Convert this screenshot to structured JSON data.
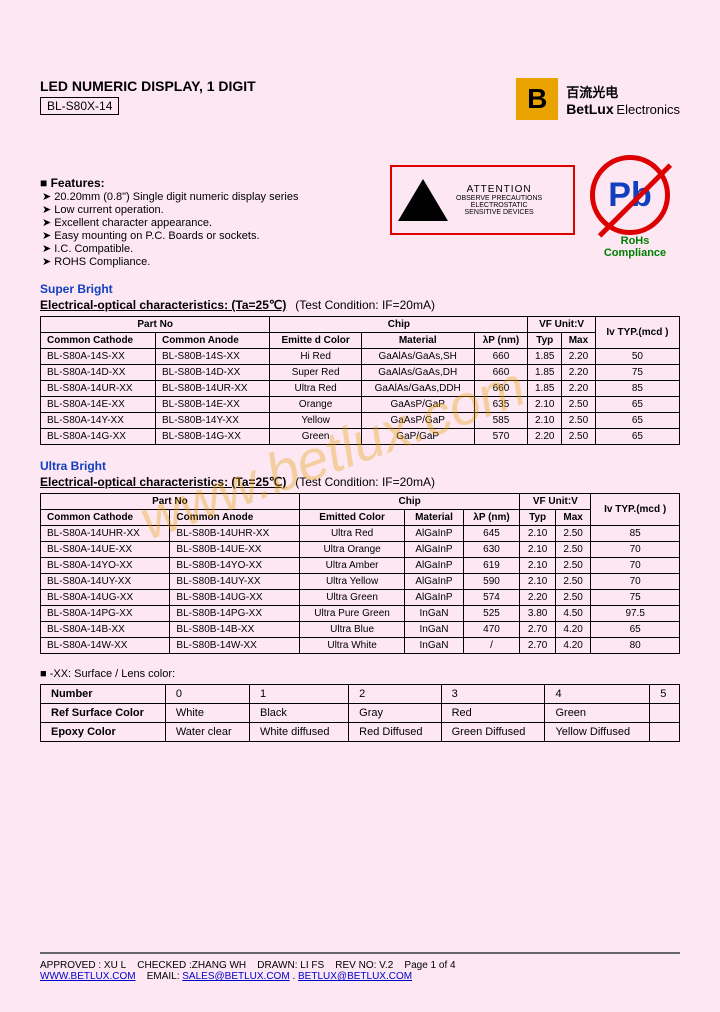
{
  "company": {
    "chinese": "百流光电",
    "name": "BetLux",
    "suffix": "Electronics"
  },
  "title": "LED NUMERIC DISPLAY, 1 DIGIT",
  "model": "BL-S80X-14",
  "features_label": "Features:",
  "features": [
    "20.20mm (0.8\") Single digit numeric display series",
    "Low current operation.",
    "Excellent character appearance.",
    "Easy mounting on P.C. Boards or sockets.",
    "I.C. Compatible.",
    "ROHS Compliance."
  ],
  "attention": {
    "title": "ATTENTION",
    "line1": "OBSERVE PRECAUTIONS",
    "line2": "ELECTROSTATIC",
    "line3": "SENSITIVE DEVICES"
  },
  "pb": "Pb",
  "rohs": "RoHs Compliance",
  "superbright_title": "Super Bright",
  "ultrabright_title": "Ultra Bright",
  "char_title": "Electrical-optical characteristics: (Ta=25℃)",
  "test_cond": "(Test Condition: IF=20mA)",
  "headers": {
    "partno": "Part No",
    "cathode": "Common Cathode",
    "anode": "Common Anode",
    "chip": "Chip",
    "emitted": "Emitted Color",
    "emitted_short": "Emitte d Color",
    "material": "Material",
    "lambda": "λP (nm)",
    "vf": "VF Unit:V",
    "typ": "Typ",
    "max": "Max",
    "iv": "Iv TYP.(mcd )"
  },
  "super_rows": [
    {
      "c": "BL-S80A-14S-XX",
      "a": "BL-S80B-14S-XX",
      "col": "Hi Red",
      "mat": "GaAlAs/GaAs,SH",
      "nm": "660",
      "typ": "1.85",
      "max": "2.20",
      "iv": "50"
    },
    {
      "c": "BL-S80A-14D-XX",
      "a": "BL-S80B-14D-XX",
      "col": "Super Red",
      "mat": "GaAlAs/GaAs,DH",
      "nm": "660",
      "typ": "1.85",
      "max": "2.20",
      "iv": "75"
    },
    {
      "c": "BL-S80A-14UR-XX",
      "a": "BL-S80B-14UR-XX",
      "col": "Ultra Red",
      "mat": "GaAlAs/GaAs,DDH",
      "nm": "660",
      "typ": "1.85",
      "max": "2.20",
      "iv": "85"
    },
    {
      "c": "BL-S80A-14E-XX",
      "a": "BL-S80B-14E-XX",
      "col": "Orange",
      "mat": "GaAsP/GaP",
      "nm": "635",
      "typ": "2.10",
      "max": "2.50",
      "iv": "65"
    },
    {
      "c": "BL-S80A-14Y-XX",
      "a": "BL-S80B-14Y-XX",
      "col": "Yellow",
      "mat": "GaAsP/GaP",
      "nm": "585",
      "typ": "2.10",
      "max": "2.50",
      "iv": "65"
    },
    {
      "c": "BL-S80A-14G-XX",
      "a": "BL-S80B-14G-XX",
      "col": "Green",
      "mat": "GaP/GaP",
      "nm": "570",
      "typ": "2.20",
      "max": "2.50",
      "iv": "65"
    }
  ],
  "ultra_rows": [
    {
      "c": "BL-S80A-14UHR-XX",
      "a": "BL-S80B-14UHR-XX",
      "col": "Ultra Red",
      "mat": "AlGaInP",
      "nm": "645",
      "typ": "2.10",
      "max": "2.50",
      "iv": "85"
    },
    {
      "c": "BL-S80A-14UE-XX",
      "a": "BL-S80B-14UE-XX",
      "col": "Ultra Orange",
      "mat": "AlGaInP",
      "nm": "630",
      "typ": "2.10",
      "max": "2.50",
      "iv": "70"
    },
    {
      "c": "BL-S80A-14YO-XX",
      "a": "BL-S80B-14YO-XX",
      "col": "Ultra Amber",
      "mat": "AlGaInP",
      "nm": "619",
      "typ": "2.10",
      "max": "2.50",
      "iv": "70"
    },
    {
      "c": "BL-S80A-14UY-XX",
      "a": "BL-S80B-14UY-XX",
      "col": "Ultra Yellow",
      "mat": "AlGaInP",
      "nm": "590",
      "typ": "2.10",
      "max": "2.50",
      "iv": "70"
    },
    {
      "c": "BL-S80A-14UG-XX",
      "a": "BL-S80B-14UG-XX",
      "col": "Ultra Green",
      "mat": "AlGaInP",
      "nm": "574",
      "typ": "2.20",
      "max": "2.50",
      "iv": "75"
    },
    {
      "c": "BL-S80A-14PG-XX",
      "a": "BL-S80B-14PG-XX",
      "col": "Ultra Pure Green",
      "mat": "InGaN",
      "nm": "525",
      "typ": "3.80",
      "max": "4.50",
      "iv": "97.5"
    },
    {
      "c": "BL-S80A-14B-XX",
      "a": "BL-S80B-14B-XX",
      "col": "Ultra Blue",
      "mat": "InGaN",
      "nm": "470",
      "typ": "2.70",
      "max": "4.20",
      "iv": "65"
    },
    {
      "c": "BL-S80A-14W-XX",
      "a": "BL-S80B-14W-XX",
      "col": "Ultra White",
      "mat": "InGaN",
      "nm": "/",
      "typ": "2.70",
      "max": "4.20",
      "iv": "80"
    }
  ],
  "lens_title": "-XX: Surface / Lens color:",
  "lens": {
    "headers": [
      "Number",
      "0",
      "1",
      "2",
      "3",
      "4",
      "5"
    ],
    "rows": [
      [
        "Ref Surface Color",
        "White",
        "Black",
        "Gray",
        "Red",
        "Green",
        ""
      ],
      [
        "Epoxy Color",
        "Water clear",
        "White diffused",
        "Red Diffused",
        "Green Diffused",
        "Yellow Diffused",
        ""
      ]
    ]
  },
  "watermark": "www.betlux.com",
  "footer": {
    "approved": "APPROVED : XU L",
    "checked": "CHECKED :ZHANG WH",
    "drawn": "DRAWN: LI FS",
    "rev": "REV NO: V.2",
    "page": "Page 1 of 4",
    "url": "WWW.BETLUX.COM",
    "email_label": "EMAIL:",
    "email1": "SALES@BETLUX.COM",
    "sep": " . ",
    "email2": "BETLUX@BETLUX.COM"
  }
}
